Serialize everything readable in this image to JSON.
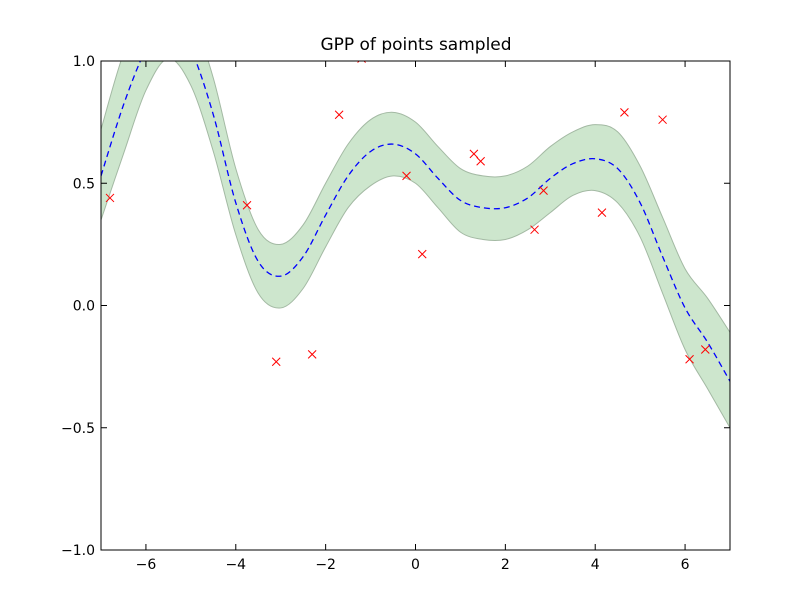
{
  "chart_data": {
    "type": "line",
    "title": "GPP of points sampled",
    "xlabel": "",
    "ylabel": "",
    "xlim": [
      -7,
      7
    ],
    "ylim": [
      -1.0,
      1.0
    ],
    "x_ticks": [
      -6,
      -4,
      -2,
      0,
      2,
      4,
      6
    ],
    "x_tick_labels": [
      "−6",
      "−4",
      "−2",
      "0",
      "2",
      "4",
      "6"
    ],
    "y_ticks": [
      -1.0,
      -0.5,
      0.0,
      0.5,
      1.0
    ],
    "y_tick_labels": [
      "−1.0",
      "−0.5",
      "0.0",
      "0.5",
      "1.0"
    ],
    "grid": false,
    "legend": "none",
    "colors": {
      "mean": "#0000ff",
      "band_fill": "#cde6cd",
      "band_edge": "#a3b9a3",
      "points": "#ff0000"
    },
    "series": [
      {
        "kind": "mean-dashed-line",
        "x": [
          -7.0,
          -6.5,
          -6.0,
          -5.5,
          -5.0,
          -4.5,
          -4.0,
          -3.5,
          -3.0,
          -2.5,
          -2.0,
          -1.5,
          -1.0,
          -0.5,
          0.0,
          0.5,
          1.0,
          1.5,
          2.0,
          2.5,
          3.0,
          3.5,
          4.0,
          4.5,
          5.0,
          5.5,
          6.0,
          6.5,
          7.0
        ],
        "y": [
          0.53,
          0.82,
          1.05,
          1.2,
          1.05,
          0.78,
          0.42,
          0.18,
          0.12,
          0.2,
          0.37,
          0.53,
          0.63,
          0.66,
          0.62,
          0.52,
          0.43,
          0.4,
          0.4,
          0.44,
          0.52,
          0.58,
          0.6,
          0.56,
          0.42,
          0.2,
          -0.01,
          -0.15,
          -0.31
        ]
      },
      {
        "kind": "confidence-band",
        "x": [
          -7.0,
          -6.5,
          -6.0,
          -5.5,
          -5.0,
          -4.5,
          -4.0,
          -3.5,
          -3.0,
          -2.5,
          -2.0,
          -1.5,
          -1.0,
          -0.5,
          0.0,
          0.5,
          1.0,
          1.5,
          2.0,
          2.5,
          3.0,
          3.5,
          4.0,
          4.5,
          5.0,
          5.5,
          6.0,
          6.5,
          7.0
        ],
        "lower": [
          0.35,
          0.62,
          0.88,
          1.01,
          0.9,
          0.63,
          0.29,
          0.05,
          -0.01,
          0.07,
          0.24,
          0.4,
          0.49,
          0.53,
          0.5,
          0.4,
          0.3,
          0.27,
          0.27,
          0.31,
          0.38,
          0.45,
          0.47,
          0.42,
          0.28,
          0.05,
          -0.18,
          -0.34,
          -0.5
        ],
        "upper": [
          0.72,
          1.03,
          1.22,
          1.38,
          1.2,
          0.93,
          0.56,
          0.31,
          0.25,
          0.33,
          0.5,
          0.66,
          0.76,
          0.79,
          0.75,
          0.65,
          0.56,
          0.53,
          0.53,
          0.57,
          0.65,
          0.71,
          0.74,
          0.71,
          0.57,
          0.36,
          0.15,
          0.03,
          -0.11
        ]
      },
      {
        "kind": "sample-points",
        "marker": "x",
        "x": [
          -6.8,
          -3.75,
          -3.1,
          -2.3,
          -1.7,
          -1.2,
          -0.2,
          0.15,
          1.3,
          1.45,
          2.65,
          2.85,
          4.15,
          4.65,
          5.5,
          6.1,
          6.45
        ],
        "y": [
          0.44,
          0.41,
          -0.23,
          -0.2,
          0.78,
          1.01,
          0.53,
          0.21,
          0.62,
          0.59,
          0.31,
          0.47,
          0.38,
          0.79,
          0.76,
          -0.22,
          -0.18
        ]
      }
    ]
  }
}
